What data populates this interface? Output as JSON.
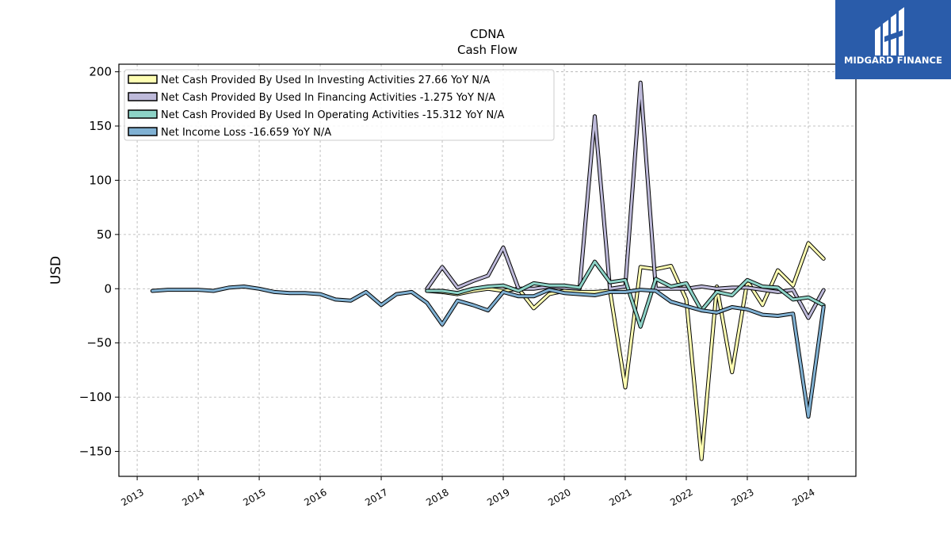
{
  "brand": {
    "name": "MIDGARD FINANCE",
    "background": "#2a5caa"
  },
  "chart_data": {
    "type": "line",
    "title": "CDNA",
    "subtitle": "Cash Flow",
    "ylabel": "USD",
    "xlim": [
      2012.7,
      2024.78
    ],
    "ylim": [
      -173,
      207
    ],
    "yticks": [
      -150,
      -100,
      -50,
      0,
      50,
      100,
      150,
      200
    ],
    "xticks": [
      2013,
      2014,
      2015,
      2016,
      2017,
      2018,
      2019,
      2020,
      2021,
      2022,
      2023,
      2024
    ],
    "grid": true,
    "legend_position": "top-left",
    "series": [
      {
        "name": "Net Cash Provided By Used In Investing Activities",
        "legend_label": "Net Cash Provided By Used In Investing Activities  27.66 YoY N/A",
        "color": "#ffffb3",
        "x": [
          2017.75,
          2018.0,
          2018.25,
          2018.5,
          2018.75,
          2019.0,
          2019.25,
          2019.5,
          2019.75,
          2020.0,
          2020.25,
          2020.5,
          2020.75,
          2021.0,
          2021.25,
          2021.5,
          2021.75,
          2022.0,
          2022.25,
          2022.5,
          2022.75,
          2023.0,
          2023.25,
          2023.5,
          2023.75,
          2024.0,
          2024.25
        ],
        "y": [
          -2,
          -3,
          -5,
          -2,
          0,
          -2,
          0,
          -18,
          -5,
          -2,
          -3,
          -3,
          -2,
          -91,
          20,
          18,
          21,
          -10,
          -157,
          2,
          -77,
          7,
          -15,
          17,
          3,
          42,
          27.66
        ]
      },
      {
        "name": "Net Cash Provided By Used In Financing Activities",
        "legend_label": "Net Cash Provided By Used In Financing Activities  -1.275 YoY N/A",
        "color": "#bebada",
        "x": [
          2017.75,
          2018.0,
          2018.25,
          2018.5,
          2018.75,
          2019.0,
          2019.25,
          2019.5,
          2019.75,
          2020.0,
          2020.25,
          2020.5,
          2020.75,
          2021.0,
          2021.25,
          2021.5,
          2021.75,
          2022.0,
          2022.25,
          2022.5,
          2022.75,
          2023.0,
          2023.25,
          2023.5,
          2023.75,
          2024.0,
          2024.25
        ],
        "y": [
          0,
          20,
          1,
          7,
          12,
          38,
          0,
          0,
          2,
          1,
          0,
          159,
          0,
          2,
          190,
          0,
          0,
          0,
          2,
          0,
          1,
          1,
          -1,
          -3,
          -1,
          -27,
          -1.275
        ]
      },
      {
        "name": "Net Cash Provided By Used In Operating Activities",
        "legend_label": "Net Cash Provided By Used In Operating Activities  -15.312 YoY N/A",
        "color": "#8dd3c7",
        "x": [
          2017.75,
          2018.0,
          2018.25,
          2018.5,
          2018.75,
          2019.0,
          2019.25,
          2019.5,
          2019.75,
          2020.0,
          2020.25,
          2020.5,
          2020.75,
          2021.0,
          2021.25,
          2021.5,
          2021.75,
          2022.0,
          2022.25,
          2022.5,
          2022.75,
          2023.0,
          2023.25,
          2023.5,
          2023.75,
          2024.0,
          2024.25
        ],
        "y": [
          -2,
          -2,
          -4,
          0,
          2,
          3,
          -2,
          5,
          3,
          3,
          1,
          25,
          6,
          8,
          -35,
          9,
          2,
          5,
          -20,
          -3,
          -6,
          8,
          2,
          1,
          -10,
          -8,
          -15.312
        ]
      },
      {
        "name": "Net Income Loss",
        "legend_label": "Net Income Loss  -16.659 YoY N/A",
        "color": "#80b1d3",
        "x": [
          2013.25,
          2013.5,
          2013.75,
          2014.0,
          2014.25,
          2014.5,
          2014.75,
          2015.0,
          2015.25,
          2015.5,
          2015.75,
          2016.0,
          2016.25,
          2016.5,
          2016.75,
          2017.0,
          2017.25,
          2017.5,
          2017.75,
          2018.0,
          2018.25,
          2018.5,
          2018.75,
          2019.0,
          2019.25,
          2019.5,
          2019.75,
          2020.0,
          2020.25,
          2020.5,
          2020.75,
          2021.0,
          2021.25,
          2021.5,
          2021.75,
          2022.0,
          2022.25,
          2022.5,
          2022.75,
          2023.0,
          2023.25,
          2023.5,
          2023.75,
          2024.0,
          2024.25
        ],
        "y": [
          -2,
          -1,
          -1,
          -1,
          -2,
          1,
          2,
          0,
          -3,
          -4,
          -4,
          -5,
          -10,
          -11,
          -3,
          -15,
          -5,
          -3,
          -13,
          -33,
          -11,
          -15,
          -20,
          -3,
          -7,
          -7,
          -1,
          -4,
          -5,
          -6,
          -3,
          -3,
          -1,
          -2,
          -12,
          -16,
          -20,
          -22,
          -17,
          -19,
          -24,
          -25,
          -23,
          -118,
          -16.659
        ]
      }
    ]
  }
}
